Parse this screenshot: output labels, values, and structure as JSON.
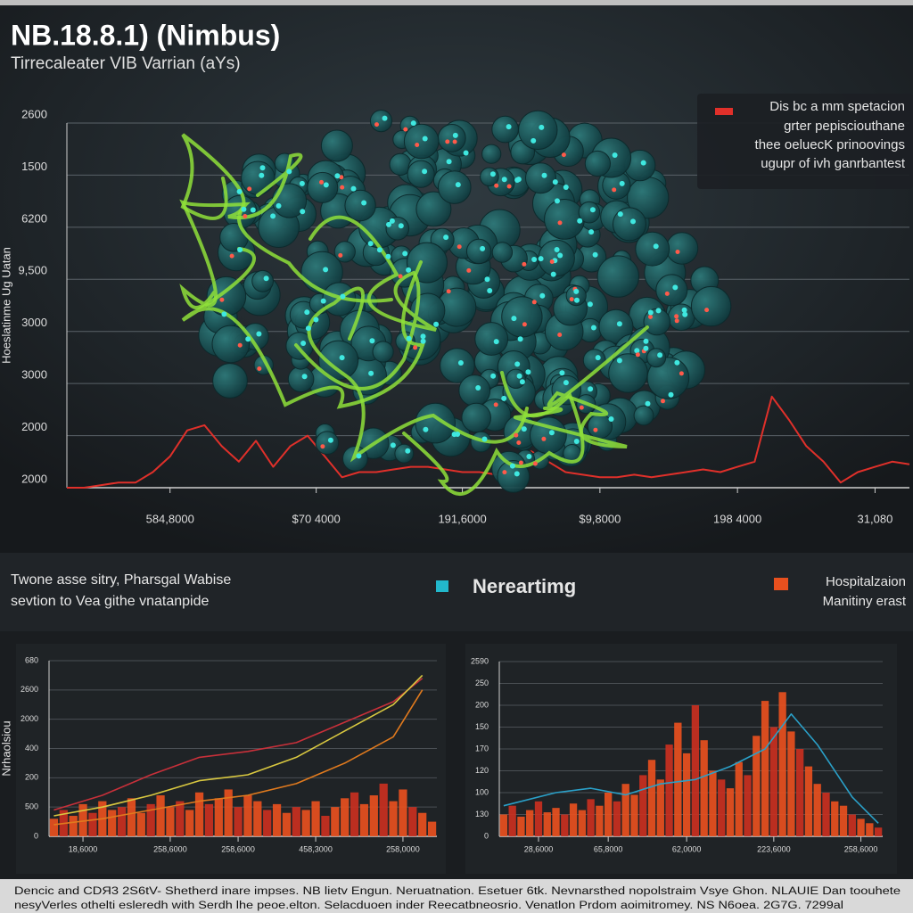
{
  "header": {
    "title": "NB.18.8.1) (Nimbus)",
    "subtitle": "Tirrecaleater VIB Varrian (aYs)"
  },
  "callout": [
    "Dis bc a mm spetacion",
    "grter pepisciouthane",
    "thee oeluecK prinoovings",
    "ugupr of ivh ganrbantest"
  ],
  "note": [
    "Twone asse sitry, Pharsgal Wabise",
    "sevtion to Vea githe vnatanpide"
  ],
  "legend": [
    {
      "name": "Nereartimg",
      "color": "#22b8cc"
    },
    {
      "name": "Hospitalzaion",
      "color": "#e8501e"
    }
  ],
  "legend_note": "Manitiny erast",
  "footer": [
    "Dencic and CDЯ3 2S6tV- Shetherd inare impses. NB lietv Engun. Neruatnation. Esetuer 6tk. Nevnarsthed nopolstraim Vsye Ghon. NLAUIE Dan toouhete",
    "nesyVerles othelti esleredh with Serdh lhe peoe.elton. Selacduoen inder Reecatbneosrio. Venatlon Prdom aoimitromey. NS N6oea. 2G7G. 7299al"
  ],
  "chart_data": [
    {
      "type": "line",
      "y_label": "Hoeslatinme Ug Uatan",
      "xlim": [
        0,
        49
      ],
      "ylim": [
        0,
        7
      ],
      "yticks": [
        {
          "value": 0,
          "label": "2000"
        },
        {
          "value": 1,
          "label": "2000"
        },
        {
          "value": 2,
          "label": "3000"
        },
        {
          "value": 3,
          "label": "3000"
        },
        {
          "value": 4,
          "label": "9,500"
        },
        {
          "value": 5,
          "label": "6200"
        },
        {
          "value": 6,
          "label": "1500"
        },
        {
          "value": 7,
          "label": "2600"
        }
      ],
      "xticks": [
        {
          "value": 6,
          "label": "584,8000"
        },
        {
          "value": 14.5,
          "label": "$70 4000"
        },
        {
          "value": 23,
          "label": "191,6000"
        },
        {
          "value": 31,
          "label": "$9,8000"
        },
        {
          "value": 39,
          "label": "198 4000"
        },
        {
          "value": 47,
          "label": "31,080"
        }
      ],
      "series": [
        {
          "type": "line",
          "color": "#e0302a",
          "values": [
            0.0,
            0.0,
            0.05,
            0.1,
            0.1,
            0.3,
            0.6,
            1.1,
            1.2,
            0.8,
            0.5,
            0.9,
            0.4,
            0.8,
            1.0,
            0.6,
            0.2,
            0.3,
            0.3,
            0.35,
            0.4,
            0.4,
            0.35,
            0.3,
            0.3,
            0.25,
            0.3,
            0.7,
            0.5,
            0.3,
            0.25,
            0.2,
            0.2,
            0.25,
            0.2,
            0.25,
            0.3,
            0.35,
            0.3,
            0.4,
            0.5,
            1.75,
            1.3,
            0.8,
            0.5,
            0.1,
            0.3,
            0.4,
            0.5,
            0.45
          ]
        }
      ]
    },
    {
      "type": "bar",
      "y_label": "Nrhaolsiou",
      "xlim": [
        -0.5,
        39.5
      ],
      "ylim": [
        0,
        6
      ],
      "yticks": [
        0,
        {
          "value": 1,
          "label": "500"
        },
        {
          "value": 2,
          "label": "200"
        },
        {
          "value": 3,
          "label": "400"
        },
        {
          "value": 4,
          "label": "2000"
        },
        {
          "value": 5,
          "label": "2600"
        },
        {
          "value": 6,
          "label": "680"
        }
      ],
      "xticks": [
        {
          "value": 3,
          "label": "18,6000"
        },
        {
          "value": 12,
          "label": "258,6000"
        },
        {
          "value": 19,
          "label": "258,6000"
        },
        {
          "value": 27,
          "label": "458,3000"
        },
        {
          "value": 36,
          "label": "258,0000"
        }
      ],
      "series": [
        {
          "type": "bar",
          "color": "#e8501e",
          "values": [
            0.6,
            0.9,
            0.7,
            1.1,
            0.8,
            1.2,
            0.9,
            1.0,
            1.3,
            0.8,
            1.1,
            1.4,
            1.0,
            1.2,
            0.9,
            1.5,
            1.1,
            1.3,
            1.6,
            1.0,
            1.4,
            1.2,
            0.9,
            1.1,
            0.8,
            1.0,
            0.9,
            1.2,
            0.7,
            1.0,
            1.3,
            1.5,
            1.1,
            1.4,
            1.8,
            1.2,
            1.6,
            1.0,
            0.8,
            0.5
          ]
        },
        {
          "type": "line",
          "color": "#c8303a",
          "x": [
            0,
            5,
            10,
            15,
            20,
            25,
            30,
            35,
            38
          ],
          "values": [
            0.9,
            1.4,
            2.1,
            2.7,
            2.9,
            3.2,
            3.9,
            4.6,
            5.4
          ]
        },
        {
          "type": "line",
          "color": "#d9c840",
          "x": [
            0,
            5,
            10,
            15,
            20,
            25,
            30,
            35,
            38
          ],
          "values": [
            0.7,
            1.0,
            1.4,
            1.9,
            2.1,
            2.7,
            3.6,
            4.5,
            5.5
          ]
        },
        {
          "type": "line",
          "color": "#e07a1e",
          "x": [
            0,
            5,
            10,
            15,
            20,
            25,
            30,
            35,
            38
          ],
          "values": [
            0.4,
            0.6,
            0.9,
            1.2,
            1.4,
            1.8,
            2.5,
            3.4,
            5.0
          ]
        }
      ]
    },
    {
      "type": "bar",
      "xlim": [
        -0.5,
        43.5
      ],
      "ylim": [
        0,
        8
      ],
      "yticks": [
        0,
        {
          "value": 1,
          "label": "130"
        },
        {
          "value": 2,
          "label": "100"
        },
        {
          "value": 3,
          "label": "120"
        },
        {
          "value": 4,
          "label": "170"
        },
        {
          "value": 5,
          "label": "150"
        },
        {
          "value": 6,
          "label": "200"
        },
        {
          "value": 7,
          "label": "250"
        },
        {
          "value": 8,
          "label": "2590"
        }
      ],
      "xticks": [
        {
          "value": 4,
          "label": "28,6000"
        },
        {
          "value": 12,
          "label": "65,8000"
        },
        {
          "value": 21,
          "label": "62,0000"
        },
        {
          "value": 31,
          "label": "223,6000"
        },
        {
          "value": 41,
          "label": "258,6000"
        }
      ],
      "series": [
        {
          "type": "bar",
          "color": "#e8501e",
          "values": [
            1.0,
            1.4,
            0.9,
            1.2,
            1.6,
            1.1,
            1.3,
            1.0,
            1.5,
            1.2,
            1.7,
            1.4,
            2.0,
            1.6,
            2.4,
            1.9,
            2.8,
            3.5,
            2.6,
            4.2,
            5.2,
            3.8,
            6.0,
            4.4,
            3.0,
            2.6,
            2.2,
            3.4,
            2.8,
            4.6,
            6.2,
            5.0,
            6.6,
            4.8,
            4.0,
            3.2,
            2.4,
            2.0,
            1.6,
            1.4,
            1.0,
            0.8,
            0.6,
            0.4
          ]
        },
        {
          "type": "line",
          "color": "#2aa0c8",
          "x": [
            0,
            6,
            10,
            14,
            18,
            22,
            26,
            30,
            33,
            36,
            40,
            43
          ],
          "values": [
            1.4,
            2.0,
            2.2,
            1.9,
            2.4,
            2.6,
            3.2,
            4.0,
            5.6,
            4.2,
            1.8,
            0.6
          ]
        }
      ]
    }
  ]
}
